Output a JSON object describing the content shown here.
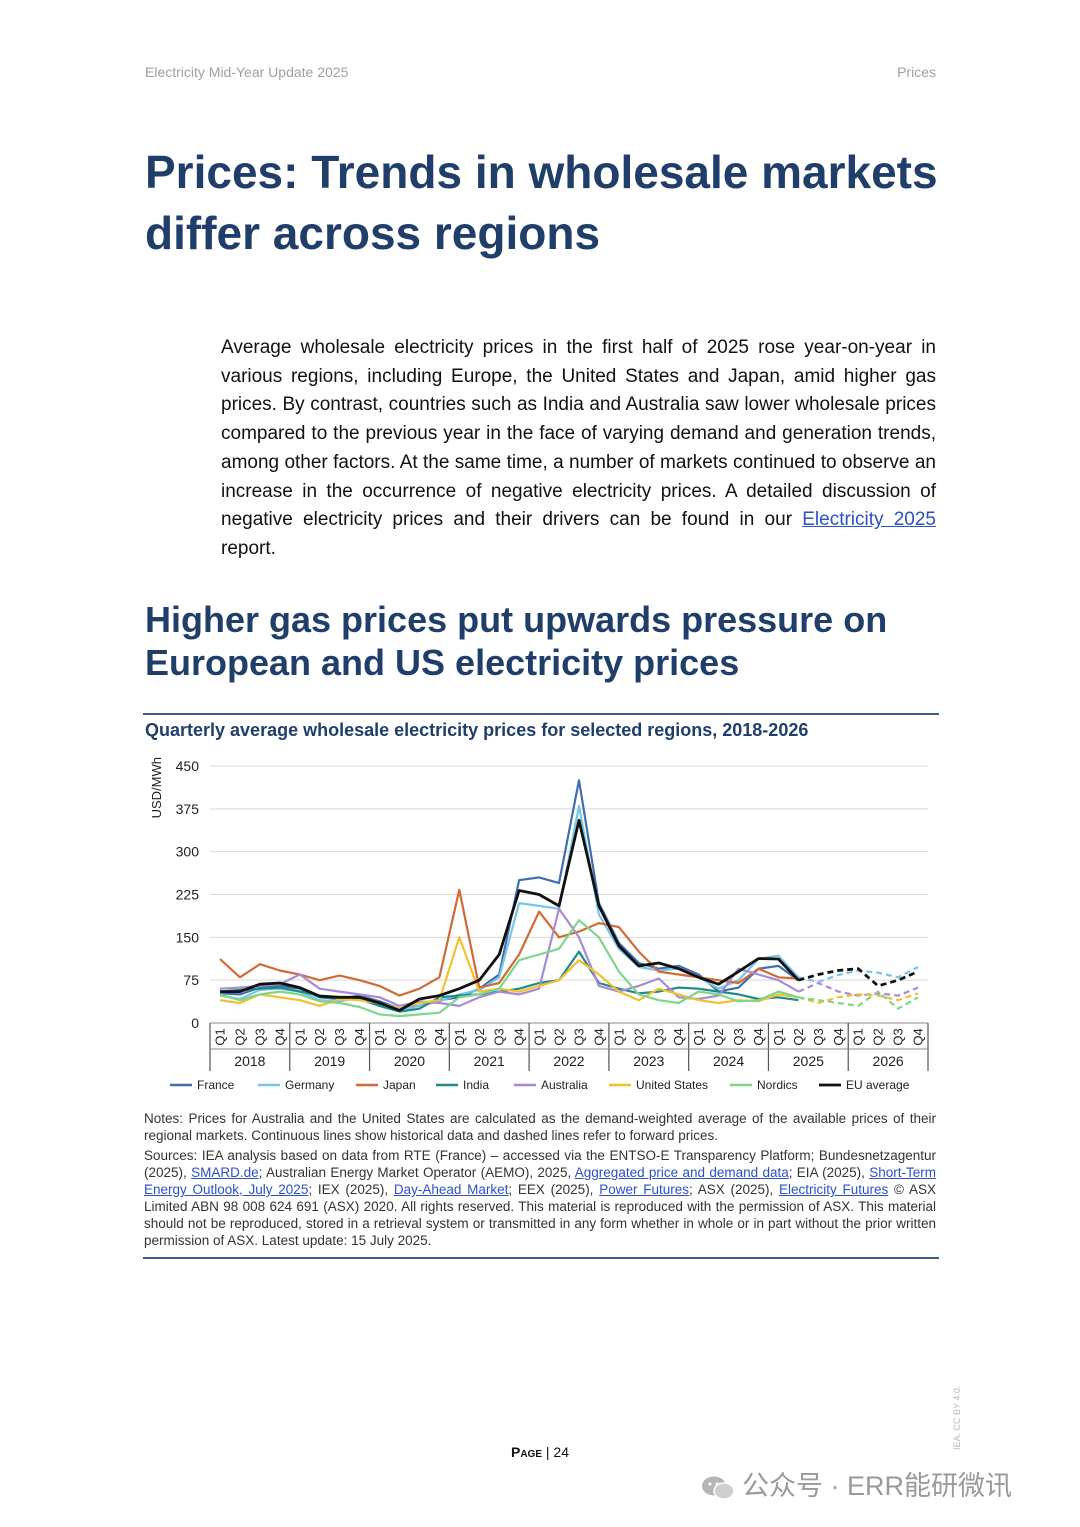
{
  "header": {
    "left": "Electricity Mid-Year Update 2025",
    "right": "Prices"
  },
  "title": "Prices: Trends in wholesale markets differ across regions",
  "intro": {
    "text": "Average wholesale electricity prices in the first half of 2025 rose year-on-year in various regions, including Europe, the United States and Japan, amid higher gas prices. By contrast, countries such as India and Australia saw lower wholesale prices compared to the previous year in the face of varying demand and generation trends, among other factors. At the same time, a number of markets continued to observe an increase in the occurrence of negative electricity prices. A detailed discussion of negative electricity prices and their drivers can be found in our ",
    "link": "Electricity 2025",
    "tail": " report."
  },
  "section_title": "Higher gas prices put upwards pressure on European and US electricity prices",
  "figure_title": "Quarterly average wholesale electricity prices for selected regions, 2018-2026",
  "chart_data": {
    "type": "line",
    "ylabel": "USD/MWh",
    "xlabel": "",
    "ylim": [
      0,
      450
    ],
    "yticks": [
      0,
      75,
      150,
      225,
      300,
      375,
      450
    ],
    "grid": true,
    "legend_position": "bottom",
    "quarter_labels": [
      "Q1",
      "Q2",
      "Q3",
      "Q4"
    ],
    "years": [
      "2018",
      "2019",
      "2020",
      "2021",
      "2022",
      "2023",
      "2024",
      "2025",
      "2026"
    ],
    "historical_end_index": 29,
    "series": [
      {
        "name": "France",
        "color": "#3f6fae",
        "values": [
          52,
          50,
          62,
          65,
          60,
          45,
          42,
          48,
          38,
          25,
          30,
          40,
          45,
          60,
          85,
          250,
          255,
          245,
          425,
          210,
          140,
          105,
          95,
          100,
          85,
          55,
          62,
          95,
          100,
          75,
          null,
          null,
          null,
          null,
          null,
          null
        ]
      },
      {
        "name": "Germany",
        "color": "#78c6e6",
        "values": [
          48,
          42,
          58,
          60,
          55,
          40,
          38,
          45,
          32,
          22,
          30,
          38,
          50,
          58,
          80,
          210,
          205,
          200,
          380,
          190,
          130,
          98,
          92,
          95,
          80,
          60,
          75,
          112,
          118,
          80,
          72,
          84,
          92,
          88,
          80,
          98
        ]
      },
      {
        "name": "Japan",
        "color": "#d26a35",
        "values": [
          112,
          80,
          103,
          92,
          85,
          75,
          83,
          75,
          65,
          48,
          60,
          80,
          233,
          62,
          70,
          120,
          195,
          150,
          160,
          175,
          168,
          125,
          90,
          85,
          80,
          75,
          70,
          95,
          80,
          78,
          null,
          null,
          null,
          null,
          null,
          null
        ]
      },
      {
        "name": "India",
        "color": "#1f8a8a",
        "values": [
          55,
          58,
          60,
          62,
          55,
          48,
          45,
          42,
          30,
          20,
          25,
          45,
          48,
          50,
          55,
          60,
          70,
          75,
          125,
          70,
          60,
          52,
          55,
          62,
          60,
          55,
          50,
          42,
          45,
          40,
          null,
          null,
          null,
          null,
          null,
          null
        ]
      },
      {
        "name": "Australia",
        "color": "#a88ad6",
        "values": [
          60,
          62,
          65,
          68,
          85,
          60,
          55,
          50,
          45,
          30,
          38,
          35,
          30,
          45,
          55,
          50,
          60,
          200,
          150,
          65,
          55,
          65,
          78,
          45,
          42,
          48,
          95,
          85,
          75,
          55,
          70,
          55,
          48,
          52,
          48,
          62
        ]
      },
      {
        "name": "United States",
        "color": "#f2c12e",
        "values": [
          40,
          35,
          50,
          45,
          40,
          30,
          42,
          40,
          35,
          25,
          35,
          40,
          150,
          55,
          60,
          55,
          65,
          75,
          110,
          85,
          55,
          40,
          60,
          50,
          40,
          35,
          40,
          38,
          50,
          45,
          35,
          45,
          50,
          48,
          40,
          52
        ]
      },
      {
        "name": "Nordics",
        "color": "#7fd68a",
        "values": [
          50,
          40,
          50,
          55,
          50,
          38,
          35,
          28,
          15,
          12,
          15,
          18,
          45,
          50,
          60,
          110,
          120,
          130,
          180,
          150,
          90,
          50,
          40,
          35,
          55,
          50,
          38,
          40,
          55,
          45,
          40,
          35,
          30,
          55,
          25,
          45
        ]
      },
      {
        "name": "EU average",
        "color": "#111111",
        "values": [
          55,
          55,
          68,
          70,
          62,
          47,
          45,
          45,
          35,
          22,
          42,
          48,
          60,
          75,
          120,
          232,
          225,
          205,
          355,
          205,
          135,
          100,
          105,
          95,
          80,
          68,
          90,
          113,
          112,
          75,
          85,
          92,
          95,
          65,
          75,
          90
        ]
      }
    ]
  },
  "notes": {
    "notes_text": "Notes: Prices for Australia and the United States are calculated as the demand-weighted average of the available prices of their regional markets. Continuous lines show historical data and dashed lines refer to forward prices.",
    "src_1": "Sources: IEA analysis based on data from RTE (France) – accessed via the ENTSO-E Transparency Platform; Bundesnetzagentur (2025), ",
    "link_1": "SMARD.de",
    "src_2": "; Australian Energy Market Operator (AEMO), 2025, ",
    "link_2": "Aggregated price and demand data",
    "src_3": "; EIA (2025), ",
    "link_3": "Short-Term Energy Outlook, July 2025",
    "src_4": "; IEX (2025), ",
    "link_4": "Day-Ahead Market",
    "src_5": "; EEX (2025), ",
    "link_5": "Power Futures",
    "src_6": "; ASX (2025), ",
    "link_6": "Electricity Futures",
    "src_7": " © ASX Limited ABN 98 008 624 691 (ASX) 2020. All rights reserved. This material is reproduced with the permission of ASX. This material should not be reproduced, stored in a retrieval system or transmitted in any form whether in whole or in part without the prior written permission of ASX. Latest update: 15 July 2025."
  },
  "footer": {
    "page_word": "Page",
    "separator": " | ",
    "page_number": "24"
  },
  "side_mark": "IEA. CC BY 4.0.",
  "watermark": "公众号 · ERR能研微讯"
}
